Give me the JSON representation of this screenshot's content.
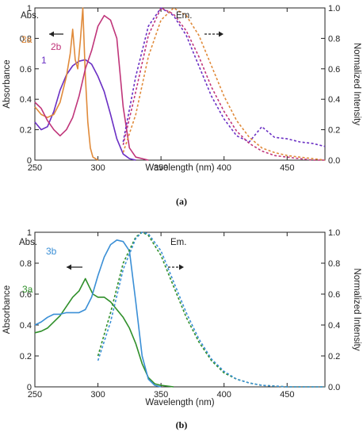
{
  "chart_data": [
    {
      "type": "line",
      "panel_caption": "(a)",
      "xlabel": "Wavelength (nm)",
      "ylabel_left": "Absorbance",
      "ylabel_right": "Normalized Intensity",
      "xlim": [
        250,
        480
      ],
      "ylim_left": [
        0,
        1.0
      ],
      "ylim_right": [
        0,
        1.0
      ],
      "xticks": [
        250,
        300,
        350,
        400,
        450
      ],
      "yticks_left": [
        0,
        0.2,
        0.4,
        0.6,
        0.8,
        1
      ],
      "yticks_right": [
        0.0,
        0.2,
        0.4,
        0.6,
        0.8,
        1.0
      ],
      "annotations": {
        "absorption": "Abs.",
        "emission": "Em."
      },
      "series": [
        {
          "name": "1",
          "kind": "absorption",
          "color": "#6a2fc4",
          "x": [
            250,
            255,
            260,
            265,
            270,
            275,
            280,
            285,
            290,
            295,
            300,
            305,
            310,
            315,
            320,
            325,
            330
          ],
          "y": [
            0.25,
            0.2,
            0.22,
            0.32,
            0.46,
            0.56,
            0.62,
            0.65,
            0.66,
            0.63,
            0.55,
            0.45,
            0.3,
            0.14,
            0.04,
            0.01,
            0.0
          ]
        },
        {
          "name": "2a",
          "kind": "absorption",
          "color": "#e08a3a",
          "x": [
            250,
            255,
            260,
            265,
            270,
            275,
            278,
            280,
            282,
            284,
            286,
            288,
            290,
            292,
            294,
            296,
            300
          ],
          "y": [
            0.35,
            0.3,
            0.28,
            0.3,
            0.38,
            0.55,
            0.7,
            0.86,
            0.66,
            0.6,
            0.78,
            1.0,
            0.55,
            0.25,
            0.08,
            0.02,
            0.0
          ]
        },
        {
          "name": "2b",
          "kind": "absorption",
          "color": "#c0357a",
          "x": [
            250,
            255,
            260,
            265,
            270,
            275,
            280,
            285,
            290,
            295,
            300,
            305,
            310,
            315,
            320,
            325,
            330,
            340
          ],
          "y": [
            0.38,
            0.34,
            0.26,
            0.2,
            0.16,
            0.2,
            0.28,
            0.42,
            0.6,
            0.72,
            0.88,
            0.95,
            0.92,
            0.8,
            0.35,
            0.08,
            0.02,
            0.0
          ]
        },
        {
          "name": "1",
          "kind": "emission",
          "color": "#6a2fc4",
          "x": [
            320,
            330,
            340,
            350,
            360,
            370,
            380,
            390,
            400,
            410,
            420,
            430,
            440,
            450,
            460,
            470,
            480
          ],
          "y": [
            0.12,
            0.55,
            0.88,
            1.0,
            0.95,
            0.82,
            0.62,
            0.42,
            0.27,
            0.16,
            0.12,
            0.22,
            0.15,
            0.14,
            0.12,
            0.11,
            0.09
          ]
        },
        {
          "name": "2a",
          "kind": "emission",
          "color": "#e08a3a",
          "x": [
            320,
            330,
            340,
            350,
            360,
            370,
            380,
            390,
            400,
            410,
            420,
            430,
            440,
            450,
            460,
            470,
            480
          ],
          "y": [
            0.05,
            0.3,
            0.68,
            0.92,
            1.0,
            0.95,
            0.82,
            0.62,
            0.42,
            0.26,
            0.15,
            0.08,
            0.05,
            0.03,
            0.02,
            0.01,
            0.0
          ]
        },
        {
          "name": "2b",
          "kind": "emission",
          "color": "#c0357a",
          "x": [
            320,
            330,
            340,
            350,
            360,
            370,
            380,
            390,
            400,
            410,
            420,
            430,
            440,
            450,
            460,
            470,
            480
          ],
          "y": [
            0.1,
            0.45,
            0.82,
            1.0,
            0.96,
            0.85,
            0.68,
            0.48,
            0.32,
            0.19,
            0.11,
            0.06,
            0.03,
            0.02,
            0.01,
            0.0,
            0.0
          ]
        }
      ]
    },
    {
      "type": "line",
      "panel_caption": "(b)",
      "xlabel": "Wavelength (nm)",
      "ylabel_left": "Absorbance",
      "ylabel_right": "Normalized Intensity",
      "xlim": [
        250,
        480
      ],
      "ylim_left": [
        0,
        1.0
      ],
      "ylim_right": [
        0,
        1.0
      ],
      "xticks": [
        250,
        300,
        350,
        400,
        450
      ],
      "yticks_left": [
        0,
        0.2,
        0.4,
        0.6,
        0.8,
        1
      ],
      "yticks_right": [
        0.0,
        0.2,
        0.4,
        0.6,
        0.8,
        1.0
      ],
      "annotations": {
        "absorption": "Abs.",
        "emission": "Em."
      },
      "series": [
        {
          "name": "3a",
          "kind": "absorption",
          "color": "#2f8f2a",
          "x": [
            250,
            255,
            260,
            265,
            270,
            275,
            280,
            285,
            290,
            293,
            296,
            300,
            305,
            310,
            315,
            320,
            325,
            330,
            335,
            340,
            345,
            350,
            360
          ],
          "y": [
            0.35,
            0.36,
            0.38,
            0.42,
            0.46,
            0.52,
            0.58,
            0.62,
            0.7,
            0.65,
            0.6,
            0.58,
            0.58,
            0.55,
            0.5,
            0.45,
            0.38,
            0.28,
            0.15,
            0.06,
            0.02,
            0.01,
            0.0
          ]
        },
        {
          "name": "3b",
          "kind": "absorption",
          "color": "#3a8fd6",
          "x": [
            250,
            255,
            260,
            265,
            270,
            275,
            280,
            285,
            290,
            295,
            300,
            305,
            310,
            315,
            320,
            325,
            330,
            335,
            340,
            345,
            350
          ],
          "y": [
            0.4,
            0.42,
            0.45,
            0.47,
            0.47,
            0.48,
            0.48,
            0.48,
            0.5,
            0.58,
            0.72,
            0.84,
            0.92,
            0.95,
            0.94,
            0.88,
            0.55,
            0.2,
            0.05,
            0.01,
            0.0
          ]
        },
        {
          "name": "3a",
          "kind": "emission",
          "color": "#2f8f2a",
          "x": [
            300,
            310,
            320,
            330,
            335,
            340,
            350,
            360,
            370,
            380,
            390,
            400,
            410,
            420,
            430,
            440,
            450,
            460,
            470,
            480
          ],
          "y": [
            0.2,
            0.48,
            0.8,
            0.97,
            1.0,
            0.98,
            0.85,
            0.65,
            0.45,
            0.29,
            0.17,
            0.09,
            0.05,
            0.025,
            0.01,
            0.005,
            0.0,
            0.0,
            0.0,
            0.0
          ]
        },
        {
          "name": "3b",
          "kind": "emission",
          "color": "#3a8fd6",
          "x": [
            300,
            310,
            320,
            330,
            335,
            340,
            350,
            360,
            370,
            380,
            390,
            400,
            410,
            420,
            430,
            440,
            450,
            460,
            470,
            480
          ],
          "y": [
            0.17,
            0.42,
            0.76,
            0.96,
            1.0,
            0.99,
            0.88,
            0.68,
            0.48,
            0.31,
            0.18,
            0.1,
            0.05,
            0.025,
            0.01,
            0.005,
            0.0,
            0.0,
            0.0,
            0.0
          ]
        }
      ]
    }
  ]
}
